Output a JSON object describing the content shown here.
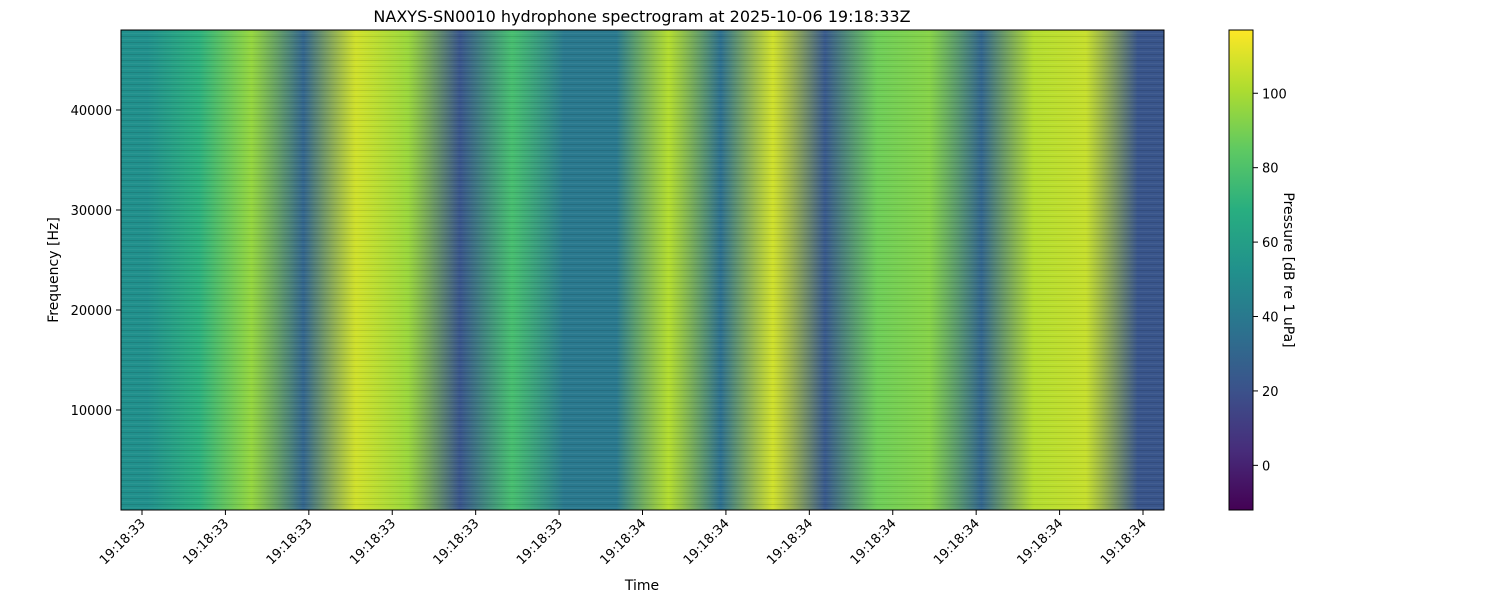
{
  "chart_data": {
    "type": "heatmap",
    "title": "NAXYS-SN0010 hydrophone spectrogram at 2025-10-06 19:18:33Z",
    "xlabel": "Time",
    "ylabel": "Frequency [Hz]",
    "ylim": [
      0,
      48000
    ],
    "y_ticks": [
      10000,
      20000,
      30000,
      40000
    ],
    "y_tick_labels": [
      "10000",
      "20000",
      "30000",
      "40000"
    ],
    "x_tick_labels": [
      "19:18:33",
      "19:18:33",
      "19:18:33",
      "19:18:33",
      "19:18:33",
      "19:18:33",
      "19:18:34",
      "19:18:34",
      "19:18:34",
      "19:18:34",
      "19:18:34",
      "19:18:34",
      "19:18:34"
    ],
    "colorscale": "viridis",
    "colorbar": {
      "label": "Pressure [dB re 1 uPa]",
      "range": [
        -12,
        117
      ],
      "ticks": [
        0,
        20,
        40,
        60,
        80,
        100
      ],
      "tick_labels": [
        "0",
        "20",
        "40",
        "60",
        "80",
        "100"
      ]
    },
    "time_bands": {
      "description_values": "mean level per time segment in dB re 1 uPa, left to right",
      "levels": [
        52,
        70,
        96,
        30,
        108,
        97,
        22,
        78,
        40,
        40,
        102,
        35,
        108,
        24,
        88,
        93,
        30,
        102,
        106,
        22
      ]
    }
  }
}
